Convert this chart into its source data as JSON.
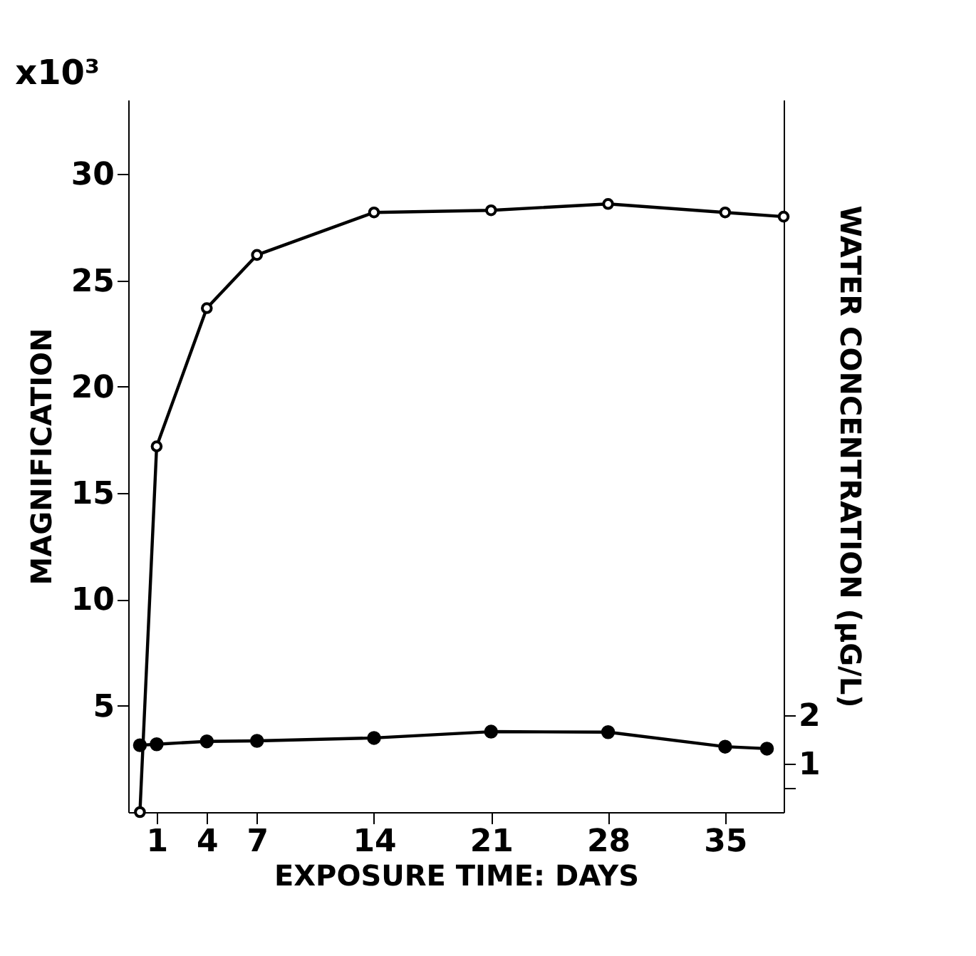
{
  "chart_data": {
    "type": "line",
    "xlabel": "EXPOSURE TIME: DAYS",
    "ylabel": "MAGNIFICATION",
    "y2label": "WATER  CONCENTRATION (μG/L)",
    "annotations": [
      "x10³"
    ],
    "series": [
      {
        "color": "#000000",
        "x": [
          0,
          1,
          4,
          7,
          14,
          21,
          28,
          35,
          38.5
        ],
        "values": [
          0,
          17.2,
          23.7,
          26.2,
          28.2,
          28.3,
          28.6,
          28.2,
          28.0
        ]
      },
      {
        "color": "#000000",
        "axis": "y2",
        "x": [
          0,
          1,
          4,
          7,
          14,
          21,
          28,
          35,
          37.5
        ],
        "values": [
          1.38,
          1.4,
          1.46,
          1.47,
          1.53,
          1.66,
          1.65,
          1.35,
          1.31
        ]
      }
    ],
    "xlim": [
      -0.7,
      38.5
    ],
    "xticks": [
      1,
      4,
      7,
      14,
      21,
      28,
      35
    ],
    "ylim": [
      0,
      33.5
    ],
    "yticks": [
      5,
      10,
      15,
      20,
      25,
      30
    ],
    "y2lim": [
      0,
      14.7
    ],
    "y2ticks": [
      {
        "value": 0.5,
        "label": null
      },
      1,
      2
    ],
    "marker": "circle",
    "line_style": "solid",
    "grid": false
  }
}
